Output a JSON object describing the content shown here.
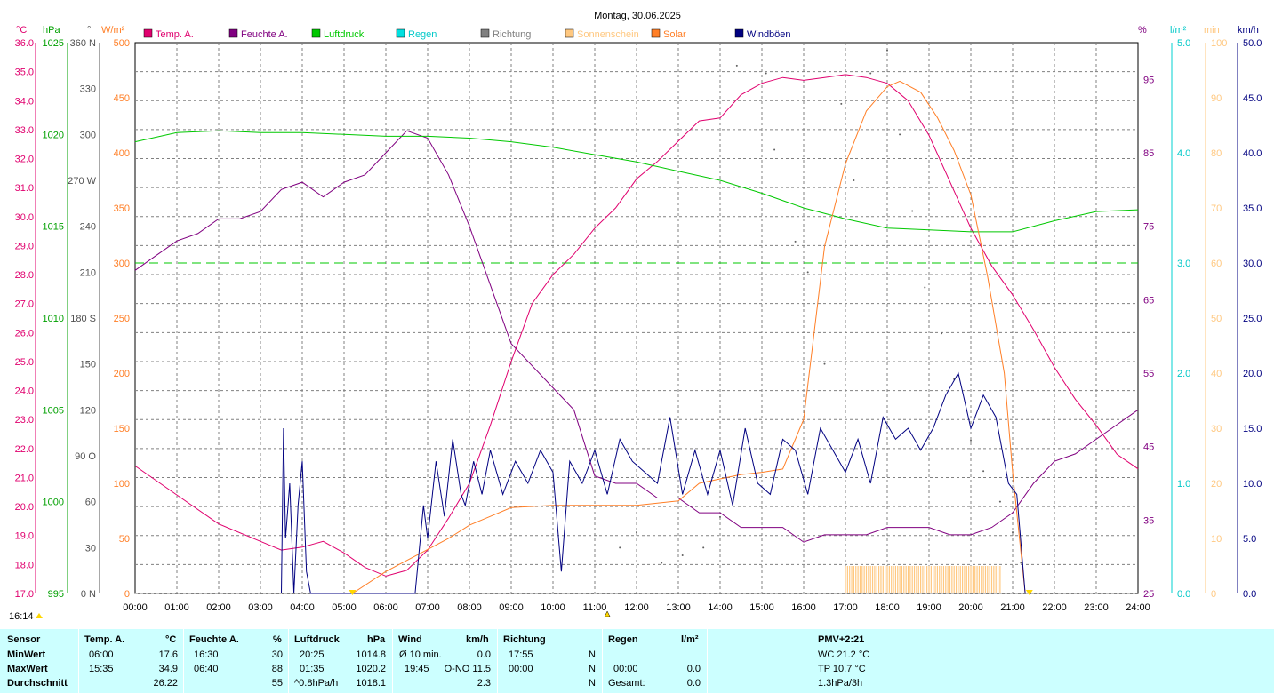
{
  "chart_data": {
    "type": "line",
    "title": "Montag, 30.06.2025",
    "time_labels": [
      "00:00",
      "01:00",
      "02:00",
      "03:00",
      "04:00",
      "05:00",
      "06:00",
      "07:00",
      "08:00",
      "09:00",
      "10:00",
      "11:00",
      "12:00",
      "13:00",
      "14:00",
      "15:00",
      "16:00",
      "17:00",
      "18:00",
      "19:00",
      "20:00",
      "21:00",
      "22:00",
      "23:00",
      "24:00"
    ],
    "legend": [
      {
        "name": "Temp. A.",
        "color": "#e0006e"
      },
      {
        "name": "Feuchte A.",
        "color": "#800080"
      },
      {
        "name": "Luftdruck",
        "color": "#00c800"
      },
      {
        "name": "Regen",
        "color": "#00e0e0"
      },
      {
        "name": "Richtung",
        "color": "#808080"
      },
      {
        "name": "Sonnenschein",
        "color": "#ffc880"
      },
      {
        "name": "Solar",
        "color": "#ff7f27"
      },
      {
        "name": "Windböen",
        "color": "#000080"
      }
    ],
    "axes": {
      "temp": {
        "unit": "°C",
        "min": 17.0,
        "max": 36.0,
        "ticks": [
          "36.0",
          "35.0",
          "34.0",
          "33.0",
          "32.0",
          "31.0",
          "30.0",
          "29.0",
          "28.0",
          "27.0",
          "26.0",
          "25.0",
          "24.0",
          "23.0",
          "22.0",
          "21.0",
          "20.0",
          "19.0",
          "18.0",
          "17.0"
        ],
        "color": "#e0006e"
      },
      "pressure": {
        "unit": "hPa",
        "min": 995,
        "max": 1025,
        "ticks": [
          "1025",
          "1020",
          "1015",
          "1010",
          "1005",
          "1000",
          "995"
        ],
        "color": "#00a000"
      },
      "direction": {
        "unit": "°",
        "min": 0,
        "max": 360,
        "ticks": [
          "360 N",
          "330",
          "300",
          "270 W",
          "240",
          "210",
          "180 S",
          "150",
          "120",
          "90  O",
          "60",
          "30",
          "0  N"
        ],
        "color": "#505050"
      },
      "solar": {
        "unit": "W/m²",
        "min": 0,
        "max": 500,
        "ticks": [
          "500",
          "450",
          "400",
          "350",
          "300",
          "250",
          "200",
          "150",
          "100",
          "50",
          "0"
        ],
        "color": "#ff7f27"
      },
      "humidity": {
        "unit": "%",
        "min": 25,
        "max": 100,
        "ticks": [
          "95",
          "85",
          "75",
          "65",
          "55",
          "45",
          "35",
          "25"
        ],
        "color": "#800080"
      },
      "rain": {
        "unit": "l/m²",
        "min": 0,
        "max": 5,
        "ticks": [
          "5.0",
          "4.0",
          "3.0",
          "2.0",
          "1.0",
          "0.0"
        ],
        "color": "#00d0d0"
      },
      "sunshine": {
        "unit": "min",
        "min": 0,
        "max": 100,
        "ticks": [
          "100",
          "90",
          "80",
          "70",
          "60",
          "50",
          "40",
          "30",
          "20",
          "10",
          "0"
        ],
        "color": "#ffc880"
      },
      "gust": {
        "unit": "km/h",
        "min": 0,
        "max": 50,
        "ticks": [
          "50.0",
          "45.0",
          "40.0",
          "35.0",
          "30.0",
          "25.0",
          "20.0",
          "15.0",
          "10.0",
          "5.0",
          "0.0"
        ],
        "color": "#000080"
      }
    },
    "series": [
      {
        "name": "Temp. A.",
        "axis": "temp",
        "x": [
          0,
          1,
          2,
          3,
          3.5,
          4,
          4.5,
          5,
          5.5,
          6,
          6.5,
          7,
          7.5,
          8,
          8.5,
          9,
          9.5,
          10,
          10.5,
          11,
          11.5,
          12,
          12.5,
          13,
          13.5,
          14,
          14.5,
          15,
          15.5,
          16,
          16.5,
          17,
          17.5,
          18,
          18.5,
          19,
          19.5,
          20,
          20.5,
          21,
          21.5,
          22,
          22.5,
          23,
          23.5,
          24
        ],
        "y": [
          21.4,
          20.4,
          19.4,
          18.8,
          18.5,
          18.6,
          18.8,
          18.4,
          17.9,
          17.6,
          17.8,
          18.5,
          19.6,
          20.8,
          22.8,
          25.0,
          27.0,
          28.0,
          28.7,
          29.6,
          30.3,
          31.3,
          31.9,
          32.6,
          33.3,
          33.4,
          34.2,
          34.6,
          34.8,
          34.7,
          34.8,
          34.9,
          34.8,
          34.6,
          34.0,
          32.8,
          31.2,
          29.6,
          28.3,
          27.3,
          26.1,
          24.8,
          23.7,
          22.8,
          21.8,
          21.3
        ]
      },
      {
        "name": "Feuchte A.",
        "axis": "humidity",
        "x": [
          0,
          0.5,
          1,
          1.5,
          2,
          2.5,
          3,
          3.5,
          4,
          4.5,
          5,
          5.5,
          6,
          6.5,
          7,
          7.5,
          8,
          8.5,
          9,
          9.5,
          10,
          10.5,
          11,
          11.5,
          12,
          12.5,
          13,
          13.5,
          14,
          14.5,
          15,
          15.5,
          16,
          16.5,
          17,
          17.5,
          18,
          18.5,
          19,
          19.5,
          20,
          20.5,
          21,
          21.5,
          22,
          22.5,
          23,
          23.5,
          24
        ],
        "y": [
          69,
          71,
          73,
          74,
          76,
          76,
          77,
          80,
          81,
          79,
          81,
          82,
          85,
          88,
          87,
          82,
          75,
          67,
          59,
          56,
          53,
          50,
          41,
          40,
          40,
          38,
          38,
          36,
          36,
          34,
          34,
          34,
          32,
          33,
          33,
          33,
          34,
          34,
          34,
          33,
          33,
          34,
          36,
          40,
          43,
          44,
          46,
          48,
          50
        ]
      },
      {
        "name": "Luftdruck",
        "axis": "pressure",
        "x": [
          0,
          1,
          2,
          3,
          4,
          5,
          6,
          7,
          8,
          9,
          10,
          11,
          12,
          13,
          14,
          15,
          16,
          17,
          18,
          19,
          20,
          21,
          22,
          23,
          24
        ],
        "y": [
          1019.6,
          1020.1,
          1020.2,
          1020.1,
          1020.1,
          1020.0,
          1019.9,
          1019.9,
          1019.8,
          1019.6,
          1019.3,
          1018.9,
          1018.5,
          1018.0,
          1017.5,
          1016.8,
          1016.0,
          1015.4,
          1014.9,
          1014.8,
          1014.7,
          1014.7,
          1015.3,
          1015.8,
          1015.9
        ]
      },
      {
        "name": "Solar",
        "axis": "solar",
        "x": [
          5.2,
          6,
          6.5,
          7,
          7.5,
          8,
          8.5,
          9,
          10,
          11,
          12,
          13,
          13.5,
          14,
          14.5,
          15,
          15.5,
          16,
          16.5,
          17,
          17.5,
          18,
          18.3,
          18.8,
          19.2,
          19.6,
          20,
          20.4,
          20.8,
          21,
          21.3
        ],
        "y": [
          0,
          20,
          30,
          40,
          50,
          62,
          70,
          78,
          80,
          80,
          80,
          84,
          100,
          104,
          108,
          110,
          113,
          158,
          315,
          390,
          438,
          460,
          465,
          455,
          432,
          402,
          362,
          288,
          200,
          110,
          0
        ]
      },
      {
        "name": "Windböen",
        "axis": "gust",
        "x": [
          3.5,
          3.55,
          3.6,
          3.7,
          3.8,
          3.9,
          4.0,
          4.1,
          4.2,
          4.3,
          6.7,
          6.9,
          7.0,
          7.2,
          7.4,
          7.6,
          7.8,
          7.9,
          8.1,
          8.3,
          8.5,
          8.8,
          9.1,
          9.4,
          9.7,
          10.0,
          10.2,
          10.4,
          10.7,
          11.0,
          11.3,
          11.6,
          11.9,
          12.2,
          12.5,
          12.8,
          13.1,
          13.4,
          13.7,
          14.0,
          14.3,
          14.6,
          14.9,
          15.2,
          15.5,
          15.8,
          16.1,
          16.4,
          16.7,
          17.0,
          17.3,
          17.6,
          17.9,
          18.2,
          18.5,
          18.8,
          19.1,
          19.4,
          19.7,
          20.0,
          20.3,
          20.6,
          20.9,
          21.1,
          21.3
        ],
        "y": [
          0,
          15,
          5,
          10,
          0,
          8,
          12,
          2,
          0,
          0,
          0,
          8,
          5,
          12,
          7,
          14,
          9,
          8,
          12,
          9,
          13,
          9,
          12,
          10,
          13,
          11,
          2,
          12,
          10,
          13,
          9,
          14,
          12,
          11,
          10,
          16,
          9,
          13,
          9,
          13,
          8,
          15,
          10,
          9,
          14,
          13,
          9,
          15,
          13,
          11,
          14,
          10,
          16,
          14,
          15,
          13,
          15,
          18,
          20,
          15,
          18,
          16,
          10,
          9,
          0
        ]
      }
    ],
    "wind_dir_points": {
      "axis": "direction",
      "x": [
        14.4,
        15.1,
        15.3,
        15.8,
        16.1,
        16.5,
        16.9,
        17.2,
        17.6,
        18.0,
        18.3,
        18.6,
        18.9,
        19.3,
        19.6,
        20.0,
        20.3,
        20.7,
        21.0,
        21.2,
        11.6,
        12.0,
        12.6,
        13.1,
        13.6,
        14.0
      ],
      "y": [
        345,
        340,
        290,
        230,
        210,
        150,
        320,
        270,
        340,
        355,
        300,
        250,
        200,
        170,
        140,
        100,
        80,
        60,
        40,
        20,
        30,
        40,
        20,
        25,
        30,
        50
      ]
    },
    "sunshine_bars": {
      "axis": "sunshine",
      "from": 17.0,
      "to": 20.75,
      "value": 5
    },
    "pressure_dashed": {
      "axis": "rain",
      "value": 3.0
    },
    "y_unit_labels": {
      "temp": "°C",
      "pressure": "hPa",
      "direction": "°",
      "solar": "W/m²",
      "humidity": "%",
      "rain": "l/m²",
      "sunshine": "min",
      "gust": "km/h"
    },
    "markers": {
      "now_label": "16:14",
      "sunrise_x": 5.2,
      "sunset_x": 21.4,
      "noon_x": 11.3
    }
  },
  "stats": {
    "headers": {
      "sensor": "Sensor",
      "temp": "Temp. A.",
      "temp_unit": "°C",
      "hum": "Feuchte A.",
      "hum_unit": "%",
      "press": "Luftdruck",
      "press_unit": "hPa",
      "wind": "Wind",
      "wind_unit": "km/h",
      "dir": "Richtung",
      "rain": "Regen",
      "rain_unit": "l/m²",
      "pmv": "PMV+2:21"
    },
    "rows": [
      {
        "label": "MinWert",
        "temp_time": "06:00",
        "temp_val": "17.6",
        "hum_time": "16:30",
        "hum_val": "30",
        "press_time": "20:25",
        "press_val": "1014.8",
        "wind_label": "Ø 10 min.",
        "wind_val": "0.0",
        "dir_time": "17:55",
        "dir_val": "N",
        "rain_time": "",
        "rain_val": "",
        "extra": "WC 21.2 °C"
      },
      {
        "label": "MaxWert",
        "temp_time": "15:35",
        "temp_val": "34.9",
        "hum_time": "06:40",
        "hum_val": "88",
        "press_time": "01:35",
        "press_val": "1020.2",
        "wind_label": "19:45",
        "wind_val": "O-NO 11.5",
        "dir_time": "00:00",
        "dir_val": "N",
        "rain_time": "00:00",
        "rain_val": "0.0",
        "extra": "TP 10.7 °C"
      },
      {
        "label": "Durchschnitt",
        "temp_time": "",
        "temp_val": "26.22",
        "hum_time": "",
        "hum_val": "55",
        "press_time": "^0.8hPa/h",
        "press_val": "1018.1",
        "wind_label": "",
        "wind_val": "2.3",
        "dir_time": "",
        "dir_val": "N",
        "rain_time": "Gesamt:",
        "rain_val": "0.0",
        "extra": "1.3hPa/3h"
      }
    ]
  }
}
